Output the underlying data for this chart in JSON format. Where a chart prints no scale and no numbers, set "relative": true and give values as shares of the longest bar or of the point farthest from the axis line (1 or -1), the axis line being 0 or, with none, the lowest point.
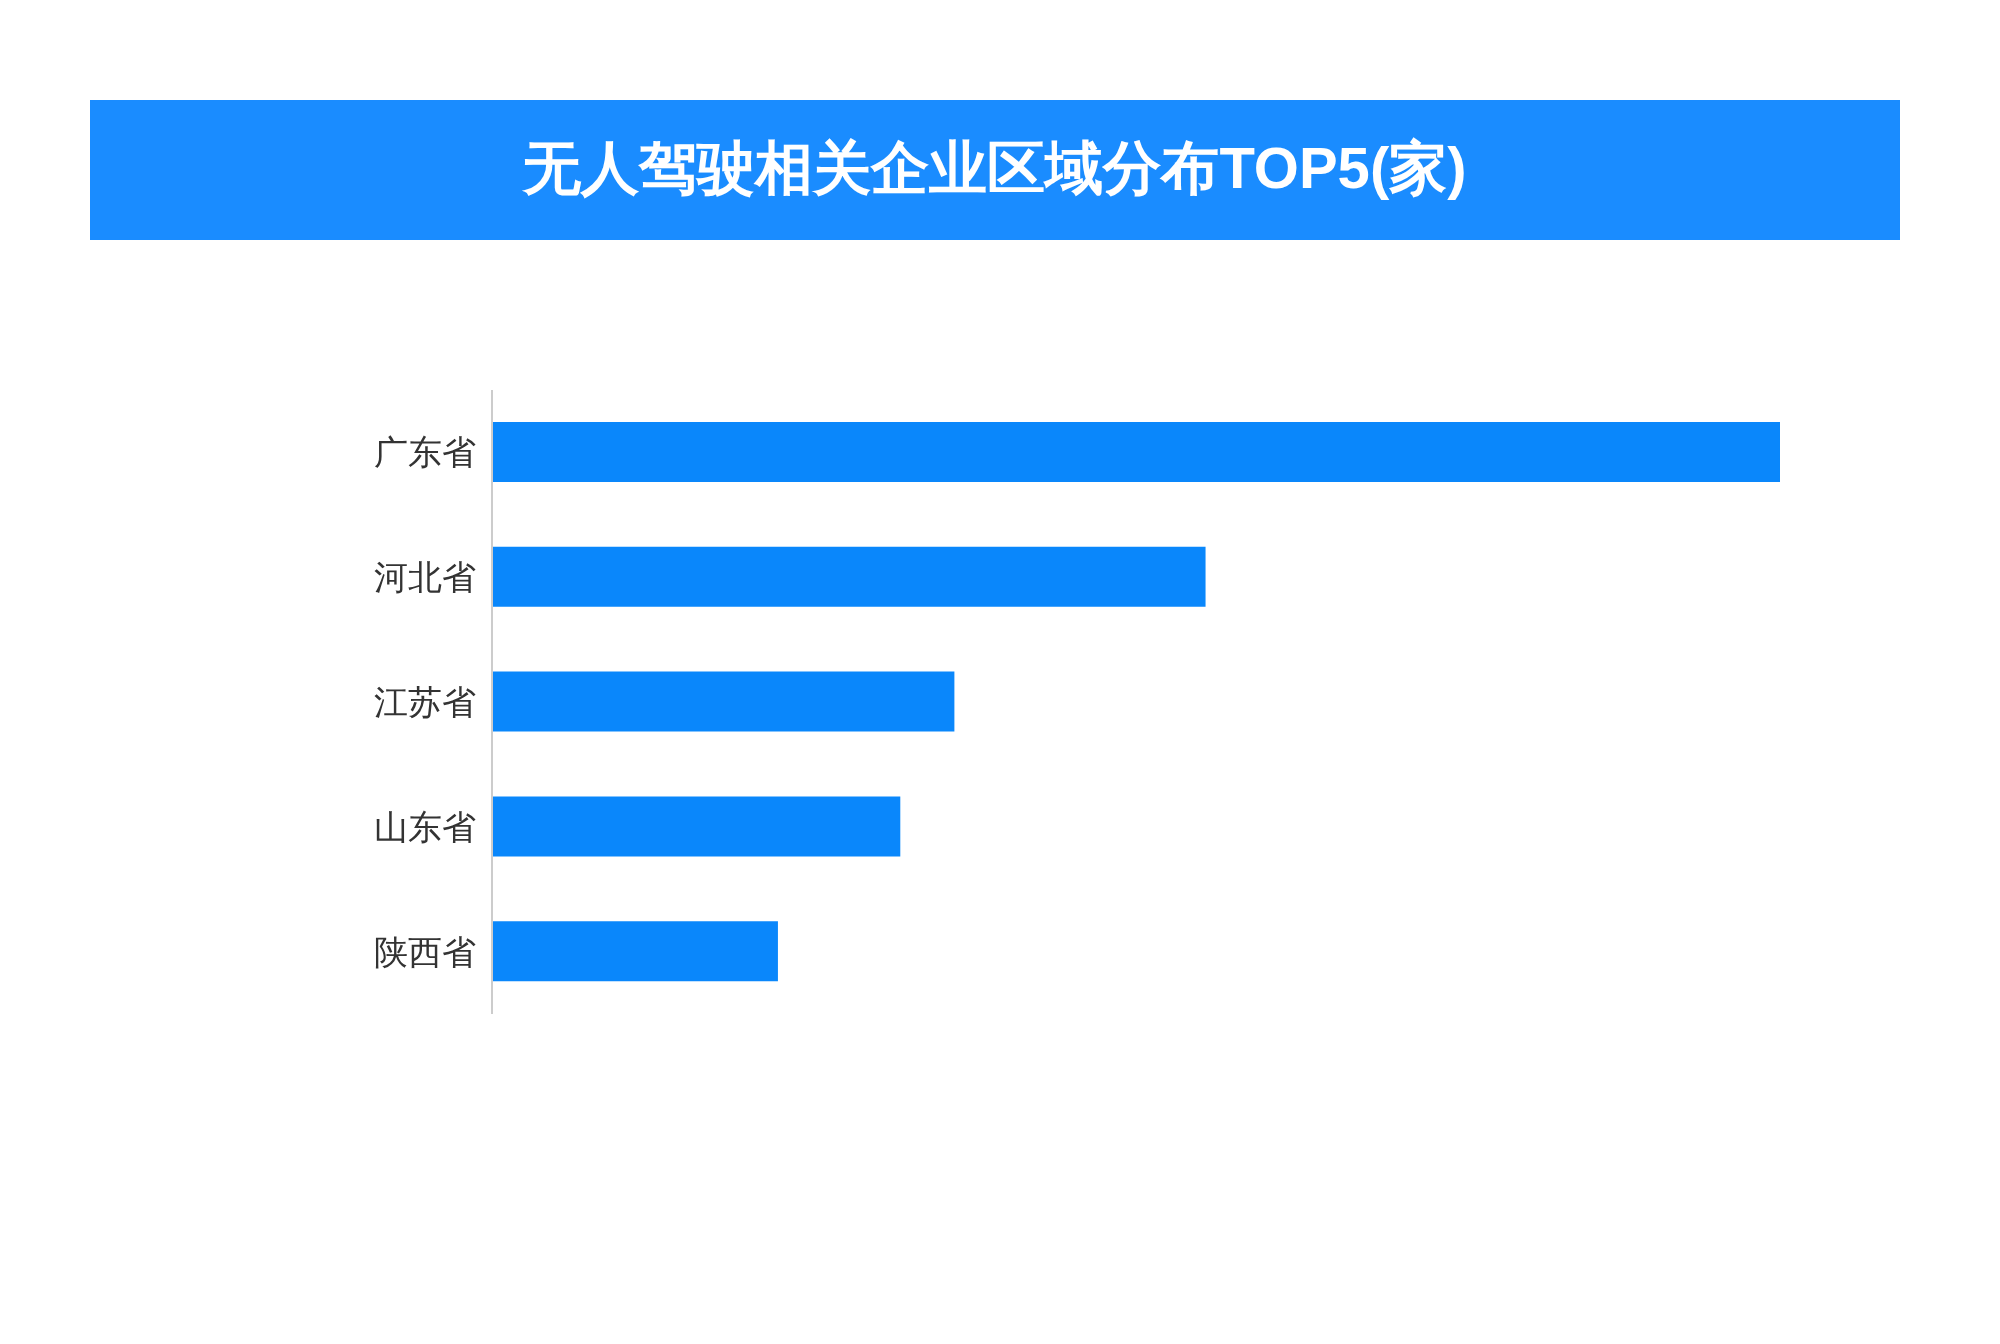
{
  "chart_data": {
    "type": "bar",
    "orientation": "horizontal",
    "relative": true,
    "title": "无人驾驶相关企业区域分布TOP5(家)",
    "categories": [
      "广东省",
      "河北省",
      "江苏省",
      "山东省",
      "陕西省"
    ],
    "values": [
      1,
      0.554,
      0.359,
      0.317,
      0.222
    ],
    "color": "#0a87fb",
    "grid": false,
    "legend": false
  }
}
